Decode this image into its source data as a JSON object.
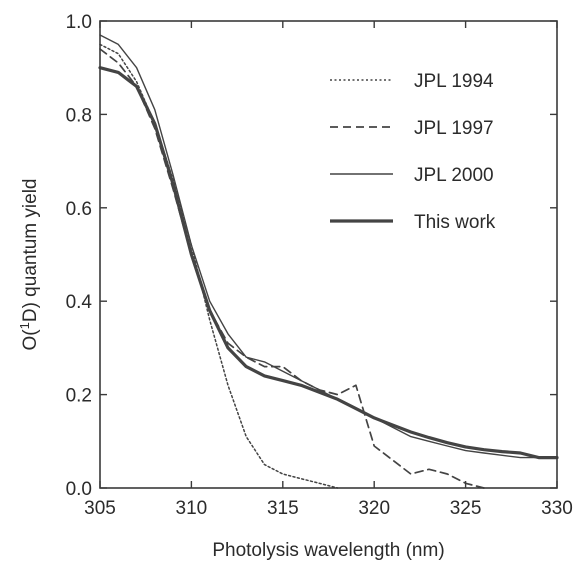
{
  "chart_data": {
    "type": "line",
    "title": "",
    "xlabel": "Photolysis wavelength (nm)",
    "ylabel_parts": {
      "pre": "O(",
      "sup": "1",
      "post": "D) quantum yield"
    },
    "xlim": [
      305,
      330
    ],
    "ylim": [
      0.0,
      1.0
    ],
    "x_ticks": [
      305,
      310,
      315,
      320,
      325,
      330
    ],
    "x_tick_labels": [
      "305",
      "310",
      "315",
      "320",
      "325",
      "330"
    ],
    "y_ticks": [
      0.0,
      0.2,
      0.4,
      0.6,
      0.8,
      1.0
    ],
    "y_tick_labels": [
      "0.0",
      "0.2",
      "0.4",
      "0.6",
      "0.8",
      "1.0"
    ],
    "grid": false,
    "legend_position": "top-right",
    "series": [
      {
        "name": "JPL 1994",
        "style": "dotted",
        "color": "#444444",
        "x": [
          305,
          306,
          307,
          308,
          309,
          310,
          311,
          312,
          313,
          314,
          315,
          316,
          317,
          318
        ],
        "y": [
          0.95,
          0.93,
          0.87,
          0.78,
          0.66,
          0.52,
          0.36,
          0.22,
          0.11,
          0.05,
          0.03,
          0.02,
          0.01,
          0.0
        ]
      },
      {
        "name": "JPL 1997",
        "style": "dashed",
        "color": "#444444",
        "x": [
          305,
          306,
          307,
          308,
          309,
          310,
          311,
          312,
          313,
          314,
          315,
          316,
          317,
          318,
          319,
          320,
          321,
          322,
          323,
          324,
          325,
          326
        ],
        "y": [
          0.94,
          0.91,
          0.86,
          0.77,
          0.64,
          0.5,
          0.38,
          0.31,
          0.28,
          0.26,
          0.26,
          0.23,
          0.21,
          0.2,
          0.22,
          0.09,
          0.06,
          0.03,
          0.04,
          0.03,
          0.01,
          0.0
        ]
      },
      {
        "name": "JPL 2000",
        "style": "thin",
        "color": "#444444",
        "x": [
          305,
          306,
          307,
          308,
          309,
          310,
          311,
          312,
          313,
          314,
          315,
          316,
          317,
          318,
          319,
          320,
          321,
          322,
          323,
          324,
          325,
          326,
          327,
          328,
          329,
          330
        ],
        "y": [
          0.97,
          0.95,
          0.9,
          0.81,
          0.67,
          0.52,
          0.4,
          0.33,
          0.28,
          0.27,
          0.25,
          0.23,
          0.21,
          0.19,
          0.17,
          0.15,
          0.13,
          0.11,
          0.1,
          0.09,
          0.08,
          0.075,
          0.07,
          0.065,
          0.065,
          0.065
        ]
      },
      {
        "name": "This work",
        "style": "thick",
        "color": "#444444",
        "x": [
          305,
          306,
          307,
          308,
          309,
          310,
          311,
          312,
          313,
          314,
          315,
          316,
          317,
          318,
          319,
          320,
          321,
          322,
          323,
          324,
          325,
          326,
          327,
          328,
          329,
          330
        ],
        "y": [
          0.9,
          0.89,
          0.86,
          0.78,
          0.65,
          0.5,
          0.38,
          0.3,
          0.26,
          0.24,
          0.23,
          0.22,
          0.205,
          0.19,
          0.17,
          0.15,
          0.135,
          0.12,
          0.108,
          0.097,
          0.088,
          0.082,
          0.078,
          0.075,
          0.065,
          0.065
        ]
      }
    ]
  }
}
